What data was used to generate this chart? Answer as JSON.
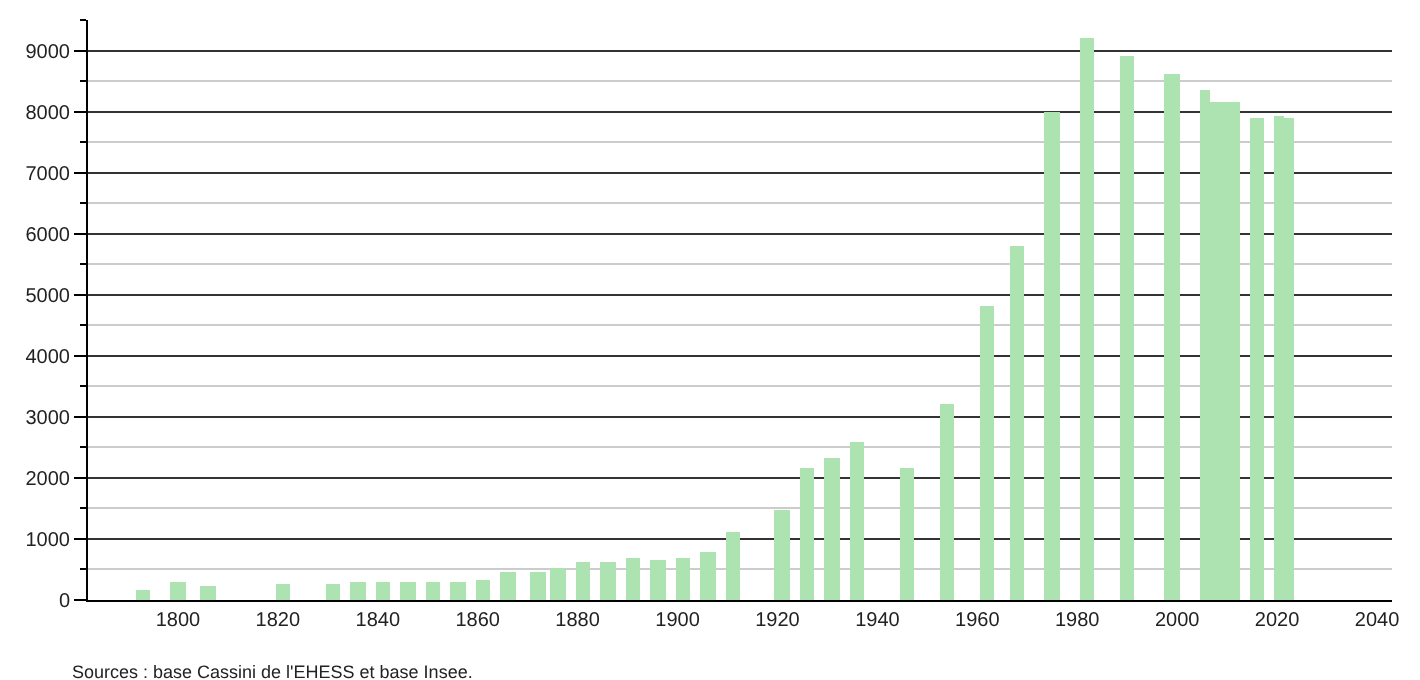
{
  "chart_data": {
    "type": "bar",
    "x": [
      1793,
      1800,
      1806,
      1821,
      1831,
      1836,
      1841,
      1846,
      1851,
      1856,
      1861,
      1866,
      1872,
      1876,
      1881,
      1886,
      1891,
      1896,
      1901,
      1906,
      1911,
      1921,
      1926,
      1931,
      1936,
      1946,
      1954,
      1962,
      1968,
      1975,
      1982,
      1990,
      1999,
      2006,
      2007,
      2008,
      2009,
      2010,
      2011,
      2016,
      2021,
      2022
    ],
    "values": [
      170,
      300,
      240,
      270,
      270,
      300,
      300,
      300,
      280,
      310,
      330,
      470,
      470,
      530,
      630,
      630,
      700,
      670,
      700,
      770,
      1130,
      1480,
      2160,
      2330,
      2590,
      2160,
      3200,
      4830,
      5800,
      8000,
      9200,
      8900,
      8600,
      8350,
      8170,
      8170,
      8170,
      8150,
      8150,
      7900,
      7930,
      7900
    ],
    "color": "#ade3b0",
    "xlim": [
      1782,
      2043
    ],
    "xticks": [
      1800,
      1820,
      1840,
      1860,
      1880,
      1900,
      1920,
      1940,
      1960,
      1980,
      2000,
      2020,
      2040
    ],
    "ylim": [
      0,
      9500
    ],
    "yticks": [
      0,
      1000,
      2000,
      3000,
      4000,
      5000,
      6000,
      7000,
      8000,
      9000
    ],
    "grid": "y",
    "annotations": [
      "Sources : base Cassini de l'EHESS et base Insee."
    ]
  }
}
